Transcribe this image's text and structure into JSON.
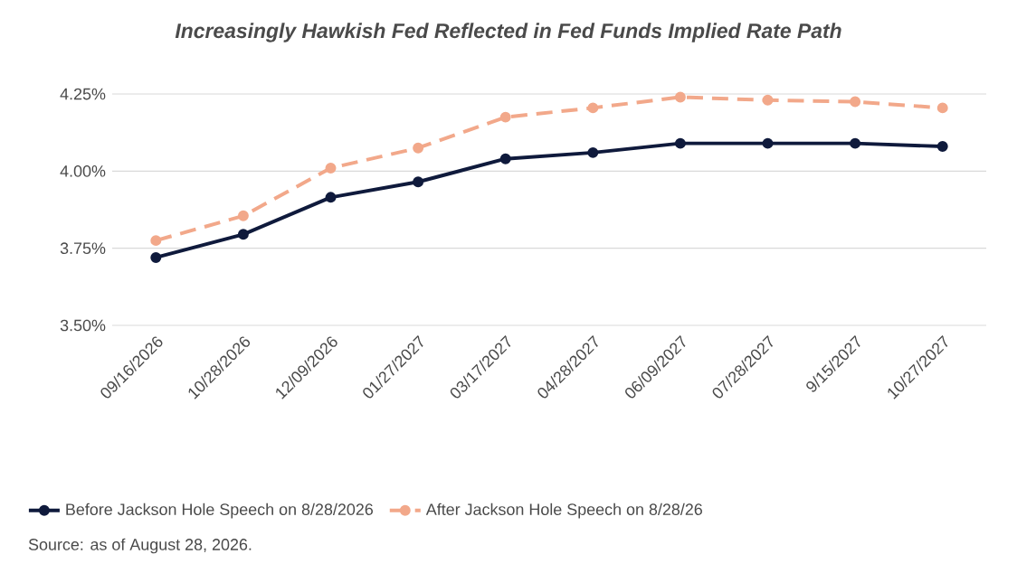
{
  "chart_data": {
    "type": "line",
    "title": "*Increasingly Hawkish Fed Reflected in Fed Funds Implied Rate Path*",
    "categories": [
      "09/16/2026",
      "10/28/2026",
      "12/09/2026",
      "01/27/2027",
      "03/17/2027",
      "04/28/2027",
      "06/09/2027",
      "07/28/2027",
      "9/15/2027",
      "10/27/2027"
    ],
    "series": [
      {
        "name": "Before Jackson Hole Speech on 8/28/2026",
        "color": "#0f1a3c",
        "line_style": "solid",
        "values": [
          3.72,
          3.795,
          3.915,
          3.965,
          4.04,
          4.06,
          4.09,
          4.09,
          4.09,
          4.08
        ]
      },
      {
        "name": "After Jackson Hole Speech on 8/28/26",
        "color": "#f2a88a",
        "line_style": "dashed",
        "values": [
          3.775,
          3.855,
          4.01,
          4.075,
          4.175,
          4.205,
          4.24,
          4.23,
          4.225,
          4.205
        ]
      }
    ],
    "ylim": [
      3.5,
      4.25
    ],
    "yticks": [
      {
        "value": 3.5,
        "label": "3.50%"
      },
      {
        "value": 3.75,
        "label": "3.75%"
      },
      {
        "value": 4.0,
        "label": "4.00%"
      },
      {
        "value": 4.25,
        "label": "4.25%"
      }
    ],
    "grid": "y",
    "legend": "bottom",
    "marker": "circle",
    "annotations": [
      "Source: as of August 28, 2026."
    ]
  }
}
